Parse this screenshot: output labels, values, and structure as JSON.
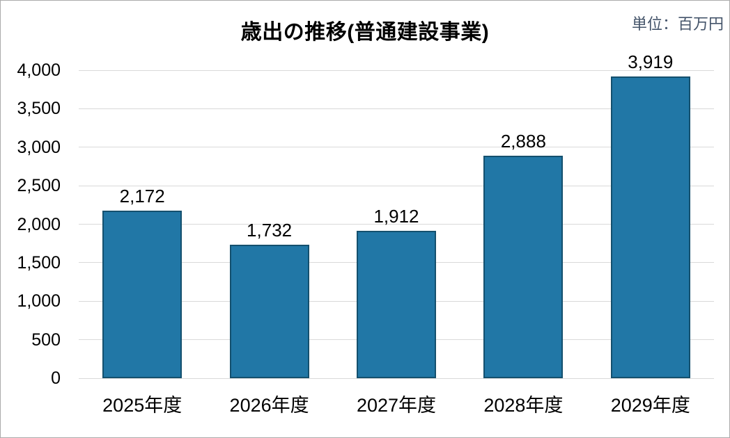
{
  "colors": {
    "bar_fill": "#2177a6",
    "bar_border": "#14506e",
    "gridline": "#d9d9d9",
    "unit_text": "#44546a",
    "text": "#000000"
  },
  "chart_data": {
    "type": "bar",
    "title": "歳出の推移(普通建設事業)",
    "unit_annotation": "単位：百万円",
    "categories": [
      "2025年度",
      "2026年度",
      "2027年度",
      "2028年度",
      "2029年度"
    ],
    "values": [
      2172,
      1732,
      1912,
      2888,
      3919
    ],
    "data_labels": [
      "2,172",
      "1,732",
      "1,912",
      "2,888",
      "3,919"
    ],
    "xlabel": "",
    "ylabel": "",
    "ylim": [
      0,
      4000
    ],
    "ytick_step": 500,
    "ytick_labels": [
      "0",
      "500",
      "1,000",
      "1,500",
      "2,000",
      "2,500",
      "3,000",
      "3,500",
      "4,000"
    ],
    "grid": true,
    "legend": false
  }
}
